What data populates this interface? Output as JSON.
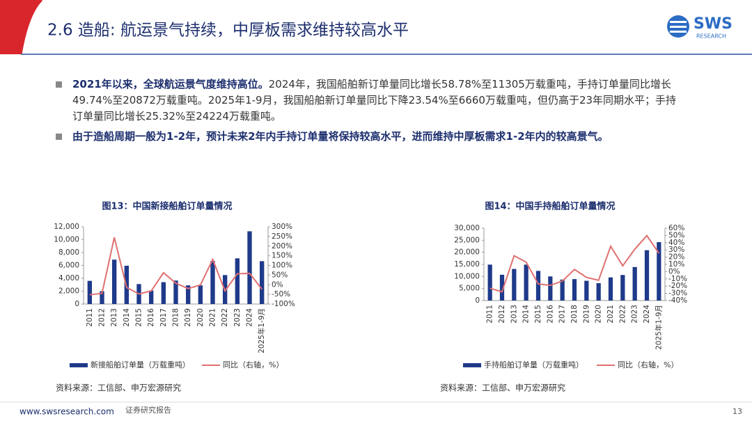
{
  "header": {
    "title": "2.6 造船: 航运景气持续，中厚板需求维持较高水平",
    "logo": "SWS",
    "logo_sub": "RESEARCH"
  },
  "bullets": [
    {
      "bold": "2021年以来，全球航运景气度维持高位。",
      "text": "2024年，我国船舶新订单量同比增长58.78%至11305万载重吨，手持订单量同比增长49.74%至20872万载重吨。2025年1-9月，我国船舶新订单量同比下降23.54%至6660万载重吨，但仍高于23年同期水平；手持订单量同比增长25.32%至24224万载重吨。"
    },
    {
      "bold": "由于造船周期一般为1-2年，预计未来2年内手持订单量将保持较高水平，进而维持中厚板需求1-2年内的较高景气。"
    }
  ],
  "chart_data": [
    {
      "type": "bar",
      "title": "图13：中国新接船舶订单量情况",
      "source": "资料来源：工信部、申万宏源研究",
      "categories": [
        "2011",
        "2012",
        "2013",
        "2014",
        "2015",
        "2016",
        "2017",
        "2018",
        "2019",
        "2020",
        "2021",
        "2022",
        "2023",
        "2024",
        "2025年1-9月"
      ],
      "series": [
        {
          "name": "新接船舶订单量（万载重吨）",
          "type": "bar",
          "color": "#1f3a8a",
          "values": [
            3600,
            2000,
            6900,
            5950,
            3100,
            2100,
            3400,
            3650,
            2900,
            2900,
            6700,
            4500,
            7100,
            11305,
            6660
          ]
        },
        {
          "name": "同比（右轴，%）",
          "type": "line",
          "axis": "y2",
          "color": "#e07070",
          "values": [
            -52,
            -45,
            245,
            -14,
            -48,
            -32,
            62,
            8,
            -20,
            -1,
            131,
            -32,
            57,
            58.78,
            -23.54
          ]
        }
      ],
      "ylim": [
        0,
        12000
      ],
      "yticks": [
        0,
        {
          "value": 2000,
          "label": "2,000"
        },
        {
          "value": 4000,
          "label": "4,000"
        },
        {
          "value": 6000,
          "label": "6,000"
        },
        {
          "value": 8000,
          "label": "8,000"
        },
        {
          "value": 10000,
          "label": "10,000"
        },
        {
          "value": 12000,
          "label": "12,000"
        }
      ],
      "y2lim": [
        -100,
        300
      ],
      "y2ticks": [
        {
          "value": -100,
          "label": "-100%"
        },
        {
          "value": -50,
          "label": "-50%"
        },
        {
          "value": 0,
          "label": "0%"
        },
        {
          "value": 50,
          "label": "50%"
        },
        {
          "value": 100,
          "label": "100%"
        },
        {
          "value": 150,
          "label": "150%"
        },
        {
          "value": 200,
          "label": "200%"
        },
        {
          "value": 250,
          "label": "250%"
        },
        {
          "value": 300,
          "label": "300%"
        }
      ]
    },
    {
      "type": "bar",
      "title": "图14：中国手持船舶订单量情况",
      "source": "资料来源：工信部、申万宏源研究",
      "categories": [
        "2011",
        "2012",
        "2013",
        "2014",
        "2015",
        "2016",
        "2017",
        "2018",
        "2019",
        "2020",
        "2021",
        "2022",
        "2023",
        "2024",
        "2025年1-9月"
      ],
      "series": [
        {
          "name": "手持船舶订单量（万载重吨）",
          "type": "bar",
          "color": "#1f3a8a",
          "values": [
            14900,
            10700,
            13100,
            14900,
            12300,
            10000,
            8700,
            8900,
            8200,
            7200,
            9600,
            10600,
            13900,
            20872,
            24224
          ]
        },
        {
          "name": "同比（右轴，%）",
          "type": "line",
          "axis": "y2",
          "color": "#e07070",
          "values": [
            -23,
            -28,
            22,
            13,
            -17,
            -19,
            -13,
            3,
            -8,
            -12,
            35,
            8,
            31,
            49.74,
            25.32
          ]
        }
      ],
      "ylim": [
        0,
        30000
      ],
      "yticks": [
        0,
        {
          "value": 5000,
          "label": "5,000"
        },
        {
          "value": 10000,
          "label": "10,000"
        },
        {
          "value": 15000,
          "label": "15,000"
        },
        {
          "value": 20000,
          "label": "20,000"
        },
        {
          "value": 25000,
          "label": "25,000"
        },
        {
          "value": 30000,
          "label": "30,000"
        }
      ],
      "y2lim": [
        -40,
        60
      ],
      "y2ticks": [
        {
          "value": -40,
          "label": "-40%"
        },
        {
          "value": -30,
          "label": "-30%"
        },
        {
          "value": -20,
          "label": "-20%"
        },
        {
          "value": -10,
          "label": "-10%"
        },
        {
          "value": 0,
          "label": "0%"
        },
        {
          "value": 10,
          "label": "10%"
        },
        {
          "value": 20,
          "label": "20%"
        },
        {
          "value": 30,
          "label": "30%"
        },
        {
          "value": 40,
          "label": "40%"
        },
        {
          "value": 50,
          "label": "50%"
        },
        {
          "value": 60,
          "label": "60%"
        }
      ]
    }
  ],
  "footer": {
    "url": "www.swsresearch.com",
    "label": "证券研究报告",
    "page": "13"
  }
}
